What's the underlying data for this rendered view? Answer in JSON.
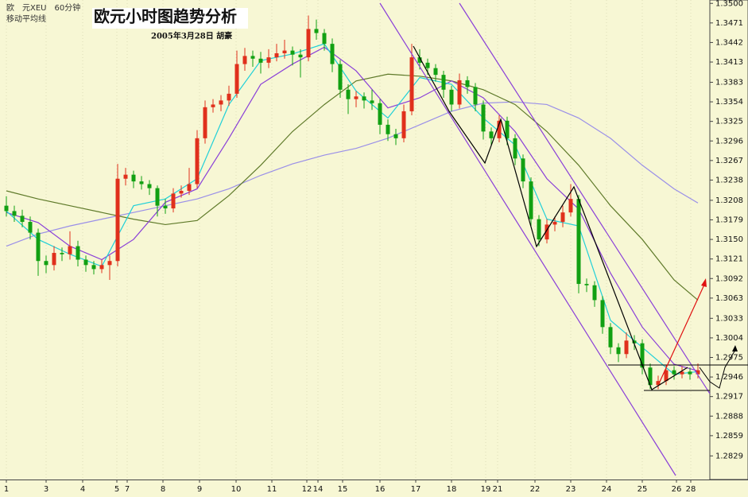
{
  "chart_data": {
    "type": "candlestick",
    "title": "欧元小时图趋势分析",
    "subtitle": "2005年3月28日 胡豪",
    "symbol_label": "欧　元XEU　60分钟",
    "indicator_label": "移动平均线",
    "up_color": "#e0301c",
    "down_color": "#12a012",
    "xlim": [
      0,
      88.5
    ],
    "ylim": [
      1.2794,
      1.3505
    ],
    "grid": true,
    "xticks": [
      {
        "value": 0,
        "label": "1"
      },
      {
        "value": 5,
        "label": "3"
      },
      {
        "value": 9.6,
        "label": "4"
      },
      {
        "value": 13.9,
        "label": "5"
      },
      {
        "value": 15.2,
        "label": "7"
      },
      {
        "value": 19.7,
        "label": "8"
      },
      {
        "value": 24.3,
        "label": "9"
      },
      {
        "value": 28.9,
        "label": "10"
      },
      {
        "value": 33.4,
        "label": "11"
      },
      {
        "value": 37.8,
        "label": "12"
      },
      {
        "value": 39.2,
        "label": "14"
      },
      {
        "value": 42.3,
        "label": "15"
      },
      {
        "value": 47,
        "label": "16"
      },
      {
        "value": 51.5,
        "label": "17"
      },
      {
        "value": 56,
        "label": "18"
      },
      {
        "value": 60.3,
        "label": "19"
      },
      {
        "value": 61.8,
        "label": "21"
      },
      {
        "value": 66.5,
        "label": "22"
      },
      {
        "value": 71,
        "label": "23"
      },
      {
        "value": 75.5,
        "label": "24"
      },
      {
        "value": 80,
        "label": "25"
      },
      {
        "value": 84.3,
        "label": "26"
      },
      {
        "value": 86.1,
        "label": "28"
      }
    ],
    "yticks": [
      {
        "value": 1.35,
        "label": "1.3500"
      },
      1.3471,
      1.3442,
      1.3413,
      1.3383,
      1.3354,
      1.3325,
      1.3296,
      1.3267,
      1.3238,
      1.3208,
      1.3179,
      {
        "value": 1.315,
        "label": "1.3150"
      },
      1.3121,
      1.3092,
      1.3063,
      1.3033,
      1.3004,
      1.2975,
      1.2946,
      1.2917,
      1.2888,
      1.2859,
      1.2829
    ],
    "ohlc": [
      [
        1.32,
        1.3214,
        1.3184,
        1.3192
      ],
      [
        1.3192,
        1.32,
        1.3176,
        1.3185
      ],
      [
        1.3185,
        1.3194,
        1.3168,
        1.3176
      ],
      [
        1.3176,
        1.3184,
        1.315,
        1.316
      ],
      [
        1.316,
        1.3166,
        1.3096,
        1.3118
      ],
      [
        1.3118,
        1.3126,
        1.31,
        1.3112
      ],
      [
        1.3112,
        1.314,
        1.3104,
        1.313
      ],
      [
        1.313,
        1.3138,
        1.3118,
        1.3128
      ],
      [
        1.3128,
        1.3162,
        1.312,
        1.314
      ],
      [
        1.314,
        1.3148,
        1.311,
        1.312
      ],
      [
        1.312,
        1.3126,
        1.3102,
        1.3112
      ],
      [
        1.3112,
        1.3118,
        1.3098,
        1.3106
      ],
      [
        1.3106,
        1.312,
        1.31,
        1.3112
      ],
      [
        1.3112,
        1.3126,
        1.309,
        1.3118
      ],
      [
        1.3118,
        1.3262,
        1.311,
        1.324
      ],
      [
        1.324,
        1.3256,
        1.323,
        1.3246
      ],
      [
        1.3246,
        1.3252,
        1.3226,
        1.3236
      ],
      [
        1.3236,
        1.3244,
        1.3224,
        1.3232
      ],
      [
        1.3232,
        1.3238,
        1.3216,
        1.3226
      ],
      [
        1.3226,
        1.323,
        1.3184,
        1.32
      ],
      [
        1.32,
        1.321,
        1.3188,
        1.3196
      ],
      [
        1.3196,
        1.3226,
        1.319,
        1.3218
      ],
      [
        1.3218,
        1.323,
        1.3212,
        1.3222
      ],
      [
        1.3222,
        1.3256,
        1.3216,
        1.3232
      ],
      [
        1.3232,
        1.3312,
        1.3226,
        1.33
      ],
      [
        1.33,
        1.3356,
        1.3292,
        1.3346
      ],
      [
        1.3346,
        1.3358,
        1.3338,
        1.335
      ],
      [
        1.335,
        1.3364,
        1.334,
        1.3356
      ],
      [
        1.3356,
        1.3378,
        1.3348,
        1.3366
      ],
      [
        1.3366,
        1.343,
        1.336,
        1.341
      ],
      [
        1.341,
        1.3434,
        1.34,
        1.3422
      ],
      [
        1.3422,
        1.343,
        1.3406,
        1.3418
      ],
      [
        1.3418,
        1.3428,
        1.3396,
        1.3412
      ],
      [
        1.3412,
        1.3432,
        1.3404,
        1.342
      ],
      [
        1.342,
        1.344,
        1.3414,
        1.3426
      ],
      [
        1.3426,
        1.3446,
        1.3418,
        1.343
      ],
      [
        1.343,
        1.3436,
        1.3408,
        1.3424
      ],
      [
        1.3424,
        1.3432,
        1.339,
        1.342
      ],
      [
        1.342,
        1.3482,
        1.3414,
        1.3462
      ],
      [
        1.3462,
        1.3476,
        1.3446,
        1.3456
      ],
      [
        1.3456,
        1.3462,
        1.343,
        1.344
      ],
      [
        1.344,
        1.3448,
        1.3398,
        1.341
      ],
      [
        1.341,
        1.3416,
        1.336,
        1.3372
      ],
      [
        1.3372,
        1.338,
        1.3336,
        1.3358
      ],
      [
        1.3358,
        1.337,
        1.3346,
        1.3362
      ],
      [
        1.3362,
        1.3368,
        1.3344,
        1.3356
      ],
      [
        1.3356,
        1.3372,
        1.3342,
        1.3352
      ],
      [
        1.3352,
        1.3358,
        1.3306,
        1.332
      ],
      [
        1.332,
        1.3328,
        1.3296,
        1.3306
      ],
      [
        1.3306,
        1.3314,
        1.329,
        1.33
      ],
      [
        1.33,
        1.335,
        1.3294,
        1.334
      ],
      [
        1.334,
        1.344,
        1.3334,
        1.342
      ],
      [
        1.342,
        1.3432,
        1.3402,
        1.3412
      ],
      [
        1.3412,
        1.3418,
        1.3394,
        1.3404
      ],
      [
        1.3404,
        1.341,
        1.3384,
        1.3394
      ],
      [
        1.3394,
        1.34,
        1.336,
        1.3372
      ],
      [
        1.3372,
        1.3378,
        1.334,
        1.335
      ],
      [
        1.335,
        1.3396,
        1.3344,
        1.3386
      ],
      [
        1.3386,
        1.3392,
        1.3366,
        1.3376
      ],
      [
        1.3376,
        1.3382,
        1.334,
        1.335
      ],
      [
        1.335,
        1.3356,
        1.3298,
        1.331
      ],
      [
        1.331,
        1.3316,
        1.329,
        1.33
      ],
      [
        1.33,
        1.3334,
        1.3294,
        1.3326
      ],
      [
        1.3326,
        1.3332,
        1.329,
        1.33
      ],
      [
        1.33,
        1.3306,
        1.326,
        1.327
      ],
      [
        1.327,
        1.3276,
        1.3226,
        1.3236
      ],
      [
        1.3236,
        1.3242,
        1.317,
        1.318
      ],
      [
        1.318,
        1.3186,
        1.314,
        1.315
      ],
      [
        1.315,
        1.318,
        1.3144,
        1.3172
      ],
      [
        1.3172,
        1.3184,
        1.3162,
        1.3176
      ],
      [
        1.3176,
        1.32,
        1.3168,
        1.319
      ],
      [
        1.319,
        1.3232,
        1.3184,
        1.321
      ],
      [
        1.321,
        1.3216,
        1.307,
        1.3084
      ],
      [
        1.3084,
        1.3092,
        1.3072,
        1.3082
      ],
      [
        1.3082,
        1.3088,
        1.305,
        1.306
      ],
      [
        1.306,
        1.3066,
        1.301,
        1.302
      ],
      [
        1.302,
        1.3026,
        1.298,
        1.299
      ],
      [
        1.299,
        1.2996,
        1.2968,
        1.298
      ],
      [
        1.298,
        1.3012,
        1.2974,
        1.3
      ],
      [
        1.3,
        1.3008,
        1.2986,
        1.2996
      ],
      [
        1.2996,
        1.3002,
        1.295,
        1.296
      ],
      [
        1.296,
        1.2966,
        1.2928,
        1.2934
      ],
      [
        1.2934,
        1.2948,
        1.2928,
        1.294
      ],
      [
        1.294,
        1.2964,
        1.2934,
        1.2956
      ],
      [
        1.2956,
        1.2962,
        1.2942,
        1.295
      ],
      [
        1.295,
        1.2962,
        1.2944,
        1.2954
      ],
      [
        1.2954,
        1.296,
        1.2942,
        1.295
      ],
      [
        1.295,
        1.2966,
        1.2944,
        1.2956
      ]
    ],
    "ma_x": [
      0,
      4,
      8,
      12,
      16,
      20,
      24,
      28,
      32,
      36,
      40,
      44,
      48,
      52,
      56,
      60,
      64,
      68,
      72,
      76,
      80,
      84,
      87
    ],
    "moving_averages": [
      {
        "color": "#9a8fe8",
        "values": [
          1.314,
          1.3158,
          1.317,
          1.318,
          1.319,
          1.32,
          1.321,
          1.3225,
          1.3245,
          1.3262,
          1.3275,
          1.3285,
          1.33,
          1.332,
          1.334,
          1.3352,
          1.3354,
          1.335,
          1.333,
          1.33,
          1.326,
          1.3225,
          1.3204
        ]
      },
      {
        "color": "#5f7a2a",
        "values": [
          1.3222,
          1.321,
          1.32,
          1.319,
          1.318,
          1.3172,
          1.3178,
          1.3215,
          1.326,
          1.331,
          1.335,
          1.3385,
          1.3395,
          1.3392,
          1.3385,
          1.3372,
          1.335,
          1.331,
          1.326,
          1.32,
          1.315,
          1.309,
          1.306
        ]
      },
      {
        "color": "#8a3fd8",
        "values": [
          1.319,
          1.3175,
          1.314,
          1.312,
          1.315,
          1.3205,
          1.3225,
          1.33,
          1.338,
          1.341,
          1.3435,
          1.34,
          1.3345,
          1.336,
          1.3385,
          1.336,
          1.331,
          1.324,
          1.3195,
          1.31,
          1.302,
          1.2965,
          1.2955
        ]
      },
      {
        "color": "#20d0d8",
        "values": [
          1.3192,
          1.315,
          1.3128,
          1.311,
          1.32,
          1.321,
          1.324,
          1.335,
          1.3415,
          1.3425,
          1.344,
          1.337,
          1.333,
          1.339,
          1.338,
          1.333,
          1.329,
          1.318,
          1.317,
          1.303,
          1.299,
          1.295,
          1.2954
        ]
      }
    ]
  }
}
